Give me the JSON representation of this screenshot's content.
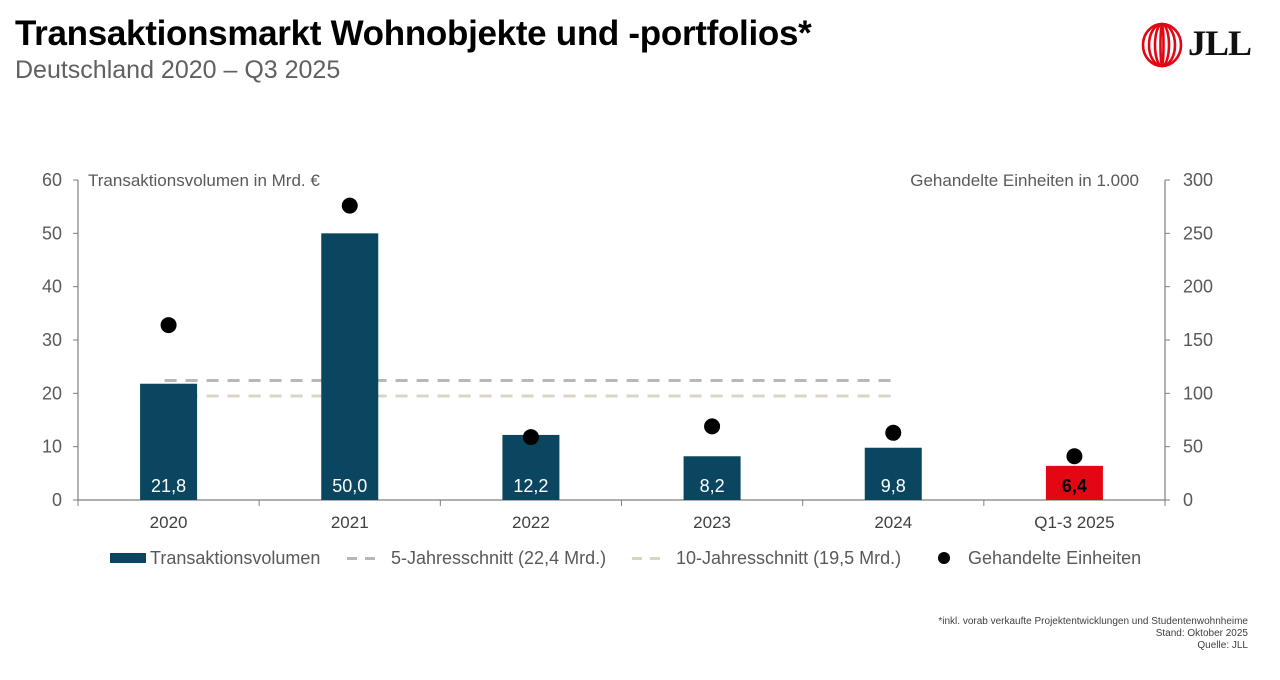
{
  "header": {
    "title": "Transaktionsmarkt Wohnobjekte und -portfolios*",
    "subtitle": "Deutschland 2020 – Q3 2025",
    "logo_text": "JLL"
  },
  "colors": {
    "bar": "#0b4660",
    "bar_highlight": "#e30613",
    "dot": "#000000",
    "avg5": "#b8b8b8",
    "avg10": "#d8d5c4",
    "axis": "#7f7f7f"
  },
  "chart_data": {
    "type": "bar",
    "categories": [
      "2020",
      "2021",
      "2022",
      "2023",
      "2024",
      "Q1-3 2025"
    ],
    "series": [
      {
        "name": "Transaktionsvolumen",
        "axis": "left",
        "type": "bar",
        "values": [
          21.8,
          50.0,
          12.2,
          8.2,
          9.8,
          6.4
        ],
        "labels": [
          "21,8",
          "50,0",
          "12,2",
          "8,2",
          "9,8",
          "6,4"
        ],
        "highlight_index": 5
      },
      {
        "name": "Gehandelte Einheiten",
        "axis": "right",
        "type": "scatter",
        "values": [
          164,
          276,
          59,
          69,
          63,
          41
        ]
      },
      {
        "name": "5-Jahresschnitt (22,4 Mrd.)",
        "axis": "left",
        "type": "line",
        "style": "dashed",
        "value": 22.4,
        "span": [
          "2020",
          "2024"
        ]
      },
      {
        "name": "10-Jahresschnitt (19,5 Mrd.)",
        "axis": "left",
        "type": "line",
        "style": "dashed",
        "value": 19.5,
        "span": [
          "2020",
          "2024"
        ]
      }
    ],
    "left_axis": {
      "title": "Transaktionsvolumen in Mrd. €",
      "ylim": [
        0,
        60
      ],
      "ticks": [
        "0",
        "10",
        "20",
        "30",
        "40",
        "50",
        "60"
      ]
    },
    "right_axis": {
      "title": "Gehandelte Einheiten in 1.000",
      "ylim": [
        0,
        300
      ],
      "ticks": [
        "0",
        "50",
        "100",
        "150",
        "200",
        "250",
        "300"
      ]
    },
    "grid": false,
    "legend_position": "bottom",
    "legend": [
      "Transaktionsvolumen",
      "5-Jahresschnitt (22,4 Mrd.)",
      "10-Jahresschnitt (19,5 Mrd.)",
      "Gehandelte Einheiten"
    ]
  },
  "footnotes": {
    "note": "*inkl. vorab verkaufte Projektentwicklungen und Studentenwohnheime",
    "stand": "Stand: Oktober 2025",
    "source": "Quelle: JLL"
  }
}
